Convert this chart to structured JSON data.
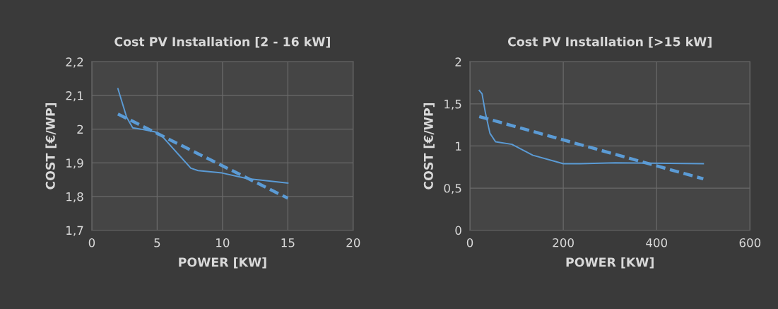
{
  "chart_data": [
    {
      "type": "line",
      "title": "Cost PV Installation [2 - 16 kW]",
      "xlabel": "POWER [KW]",
      "ylabel": "COST [€/WP]",
      "xlim": [
        0,
        20
      ],
      "xticks": [
        0,
        5,
        10,
        15,
        20
      ],
      "ylim": [
        1.7,
        2.2
      ],
      "yticks": [
        {
          "value": 1.7,
          "label": "1,7"
        },
        {
          "value": 1.8,
          "label": "1,8"
        },
        {
          "value": 1.9,
          "label": "1,9"
        },
        {
          "value": 2,
          "label": "2"
        },
        {
          "value": 2.1,
          "label": "2,1"
        },
        {
          "value": 2.2,
          "label": "2,2"
        }
      ],
      "grid": true,
      "marker": "none",
      "series": [
        {
          "color": "#5b9bd5",
          "line_style": "solid",
          "x": [
            2,
            2.67,
            3.13,
            3.76,
            4.85,
            5.4,
            7.58,
            8.13,
            9.95,
            11.95,
            15
          ],
          "values": [
            2.12,
            2.035,
            2.004,
            2.0,
            1.992,
            1.978,
            1.884,
            1.877,
            1.87,
            1.853,
            1.84
          ]
        },
        {
          "color": "#5b9bd5",
          "line_style": "dashed",
          "x": [
            2,
            15
          ],
          "values": [
            2.045,
            1.795
          ]
        }
      ]
    },
    {
      "type": "line",
      "title": "Cost PV Installation [>15 kW]",
      "xlabel": "POWER [KW]",
      "ylabel": "COST [€/WP]",
      "xlim": [
        0,
        600
      ],
      "xticks": [
        0,
        200,
        400,
        600
      ],
      "ylim": [
        0,
        2
      ],
      "yticks": [
        0,
        {
          "value": 0.5,
          "label": "0,5"
        },
        1,
        {
          "value": 1.5,
          "label": "1,5"
        },
        2
      ],
      "grid": true,
      "marker": "none",
      "series": [
        {
          "color": "#5b9bd5",
          "line_style": "solid",
          "x": [
            20,
            26,
            33,
            43,
            55,
            90,
            135,
            200,
            236,
            311,
            500
          ],
          "values": [
            1.66,
            1.62,
            1.4,
            1.15,
            1.05,
            1.02,
            0.89,
            0.79,
            0.79,
            0.8,
            0.79
          ]
        },
        {
          "color": "#5b9bd5",
          "line_style": "dashed",
          "x": [
            20,
            500
          ],
          "values": [
            1.35,
            0.61
          ]
        }
      ]
    }
  ]
}
